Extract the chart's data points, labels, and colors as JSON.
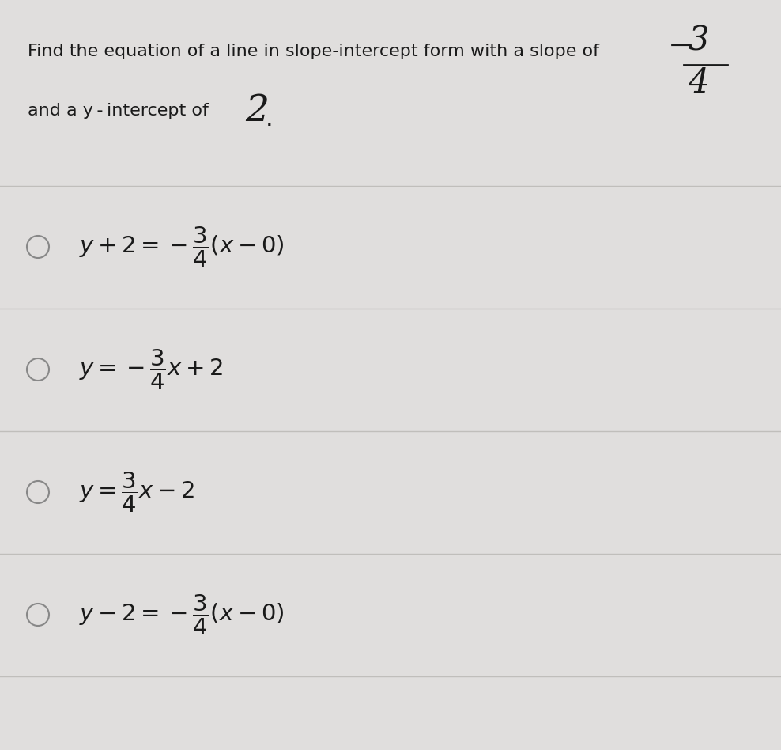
{
  "bg_color": "#e0dedd",
  "content_bg": "#eeecea",
  "text_color": "#1a1a1a",
  "question_line1": "Find the equation of a line in slope-intercept form with a slope of",
  "question_line2": "and a y - intercept of",
  "divider_color": "#c0bebb",
  "circle_color": "#888888",
  "font_size_question": 16,
  "font_size_option": 21,
  "font_size_slope_big": 30,
  "font_size_intercept_big": 34
}
